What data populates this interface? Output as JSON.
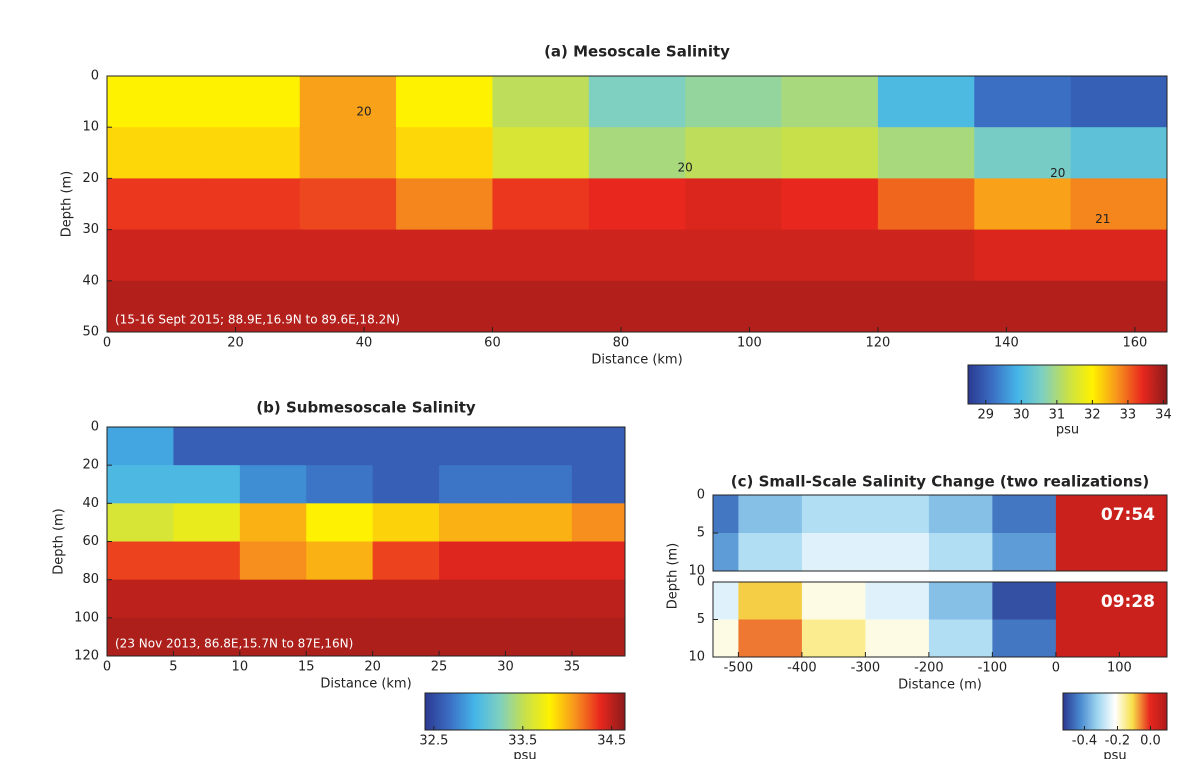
{
  "chart_data": [
    {
      "type": "heatmap",
      "title": "(a) Mesoscale Salinity",
      "xlabel": "Distance (km)",
      "ylabel": "Depth (m)",
      "annotation": "(15-16 Sept 2015; 88.9E,16.9N to 89.6E,18.2N)",
      "xlim": [
        0,
        165
      ],
      "xticks": [
        0,
        20,
        40,
        60,
        80,
        100,
        120,
        140,
        160
      ],
      "ylim": [
        0,
        50
      ],
      "yticks": [
        0,
        10,
        20,
        30,
        40,
        50
      ],
      "y_reversed": true,
      "xbins": [
        0,
        15,
        30,
        45,
        60,
        75,
        90,
        105,
        120,
        135,
        150,
        165
      ],
      "ybins": [
        0,
        10,
        20,
        30,
        40,
        50
      ],
      "values": [
        [
          32.0,
          32.0,
          32.6,
          32.0,
          31.2,
          30.6,
          30.8,
          31.0,
          30.0,
          29.2,
          29.0
        ],
        [
          32.2,
          32.2,
          32.6,
          32.2,
          31.5,
          31.0,
          31.2,
          31.3,
          31.0,
          30.5,
          30.2
        ],
        [
          33.3,
          33.3,
          33.2,
          32.8,
          33.3,
          33.4,
          33.5,
          33.4,
          33.0,
          32.6,
          32.8
        ],
        [
          33.6,
          33.6,
          33.6,
          33.6,
          33.6,
          33.6,
          33.6,
          33.6,
          33.6,
          33.5,
          33.5
        ],
        [
          33.8,
          33.8,
          33.8,
          33.8,
          33.8,
          33.8,
          33.8,
          33.8,
          33.8,
          33.8,
          33.8
        ]
      ],
      "contour_labels": [
        {
          "value": 20,
          "x": 40,
          "y": 7
        },
        {
          "value": 20,
          "x": 90,
          "y": 18
        },
        {
          "value": 20,
          "x": 148,
          "y": 19
        },
        {
          "value": 21,
          "x": 155,
          "y": 28
        }
      ],
      "colormap": [
        "#2b3990",
        "#3b6fc4",
        "#45b6e8",
        "#7fd0c0",
        "#c8e04a",
        "#fff200",
        "#f7941d",
        "#e8281e",
        "#8b1a1a"
      ],
      "clim": [
        28.5,
        34.1
      ],
      "cticks": [
        29,
        30,
        31,
        32,
        33,
        34
      ],
      "colorbar_label": "psu"
    },
    {
      "type": "heatmap",
      "title": "(b) Submesoscale Salinity",
      "xlabel": "Distance (km)",
      "ylabel": "Depth (m)",
      "annotation": "(23 Nov 2013, 86.8E,15.7N to 87E,16N)",
      "xlim": [
        0,
        39
      ],
      "xticks": [
        0,
        5,
        10,
        15,
        20,
        25,
        30,
        35
      ],
      "ylim": [
        0,
        120
      ],
      "yticks": [
        0,
        20,
        40,
        60,
        80,
        100,
        120
      ],
      "y_reversed": true,
      "xbins": [
        0,
        5,
        10,
        15,
        20,
        25,
        30,
        35,
        39
      ],
      "ybins": [
        0,
        20,
        40,
        60,
        80,
        100,
        120
      ],
      "values": [
        [
          32.9,
          32.6,
          32.6,
          32.6,
          32.6,
          32.6,
          32.6,
          32.6
        ],
        [
          33.0,
          33.0,
          32.8,
          32.7,
          32.6,
          32.7,
          32.7,
          32.6
        ],
        [
          33.6,
          33.7,
          34.0,
          33.8,
          33.9,
          34.0,
          34.0,
          34.1
        ],
        [
          34.3,
          34.3,
          34.1,
          34.0,
          34.3,
          34.4,
          34.4,
          34.4
        ],
        [
          34.5,
          34.5,
          34.5,
          34.5,
          34.5,
          34.5,
          34.5,
          34.5
        ],
        [
          34.55,
          34.55,
          34.55,
          34.55,
          34.55,
          34.55,
          34.55,
          34.55
        ]
      ],
      "colormap": [
        "#2b3990",
        "#3b6fc4",
        "#45b6e8",
        "#7fd0c0",
        "#c8e04a",
        "#fff200",
        "#f7941d",
        "#e8281e",
        "#8b1a1a"
      ],
      "clim": [
        32.4,
        34.65
      ],
      "cticks": [
        32.5,
        33.5,
        34.5
      ],
      "colorbar_label": "psu"
    },
    {
      "type": "heatmap",
      "title": "(c) Small-Scale Salinity Change (two realizations)",
      "ylabel": "Depth (m)",
      "corner_label": "07:54",
      "xlim": [
        -540,
        175
      ],
      "ylim": [
        0,
        10
      ],
      "yticks": [
        0,
        5,
        10
      ],
      "y_reversed": true,
      "xbins": [
        -540,
        -500,
        -400,
        -300,
        -200,
        -100,
        0,
        175
      ],
      "ybins": [
        0,
        5,
        10
      ],
      "values": [
        [
          -0.45,
          -0.35,
          -0.3,
          -0.3,
          -0.35,
          -0.45,
          0.05
        ],
        [
          -0.4,
          -0.3,
          -0.25,
          -0.25,
          -0.3,
          -0.4,
          0.05
        ]
      ],
      "colormap": [
        "#2b3990",
        "#4a8ad0",
        "#9fd6f0",
        "#ffffff",
        "#f7e04a",
        "#e8281e",
        "#b01a1a"
      ],
      "clim": [
        -0.53,
        0.1
      ]
    },
    {
      "type": "heatmap",
      "xlabel": "Distance (m)",
      "corner_label": "09:28",
      "xlim": [
        -540,
        175
      ],
      "xticks": [
        -500,
        -400,
        -300,
        -200,
        -100,
        0,
        100
      ],
      "ylim": [
        0,
        10
      ],
      "yticks": [
        0,
        5,
        10
      ],
      "y_reversed": true,
      "xbins": [
        -540,
        -500,
        -400,
        -300,
        -200,
        -100,
        0,
        175
      ],
      "ybins": [
        0,
        5,
        10
      ],
      "values": [
        [
          -0.25,
          -0.1,
          -0.2,
          -0.25,
          -0.35,
          -0.5,
          0.05
        ],
        [
          -0.2,
          -0.05,
          -0.15,
          -0.2,
          -0.3,
          -0.45,
          0.05
        ]
      ],
      "colormap": [
        "#2b3990",
        "#4a8ad0",
        "#9fd6f0",
        "#ffffff",
        "#f7e04a",
        "#e8281e",
        "#b01a1a"
      ],
      "clim": [
        -0.53,
        0.1
      ],
      "cticks": [
        -0.4,
        -0.2,
        {
          "value": 0,
          "label": "0.0"
        }
      ],
      "colorbar_label": "psu"
    }
  ]
}
